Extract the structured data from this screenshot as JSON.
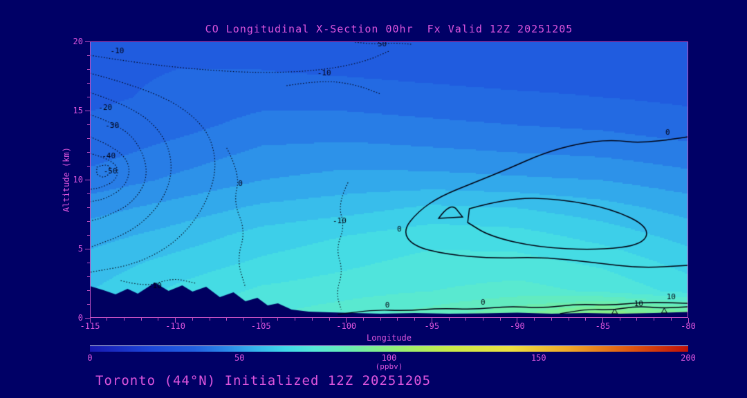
{
  "title": "CO Longitudinal X-Section 00hr  Fx Valid 12Z 20251205",
  "footer": "Toronto (44°N) Initialized 12Z 20251205",
  "colors": {
    "background": "#000066",
    "axis": "#c04fc0",
    "label_text": "#dd55dd",
    "contour_line": "#000010",
    "terrain": "#000060"
  },
  "chart_data": {
    "type": "heatmap",
    "title": "CO Longitudinal X-Section 00hr  Fx Valid 12Z 20251205",
    "xlabel": "Longitude",
    "ylabel": "Altitude (km)",
    "x_ticks": [
      -115,
      -110,
      -105,
      -100,
      -95,
      -90,
      -85,
      -80
    ],
    "y_ticks": [
      0,
      5,
      10,
      15,
      20
    ],
    "x_range": [
      -115,
      -80
    ],
    "y_range": [
      0,
      20
    ],
    "band_interval_ppbv": 5,
    "x": [
      -115,
      -110,
      -105,
      -100,
      -95,
      -90,
      -85,
      -80
    ],
    "y": [
      0,
      2,
      4,
      6,
      8,
      10,
      12,
      14,
      16,
      18,
      20
    ],
    "values_ppbv": [
      [
        63,
        70,
        75,
        79,
        84,
        92,
        104,
        98
      ],
      [
        60,
        66,
        71,
        73,
        75,
        77,
        74,
        68
      ],
      [
        57,
        62,
        66,
        69,
        72,
        72,
        69,
        63
      ],
      [
        53,
        57,
        62,
        65,
        68,
        67,
        63,
        58
      ],
      [
        48,
        52,
        56,
        58,
        61,
        60,
        57,
        53
      ],
      [
        42,
        46,
        50,
        52,
        52,
        51,
        50,
        47
      ],
      [
        38,
        42,
        46,
        47,
        46,
        45,
        44,
        42
      ],
      [
        36,
        38,
        42,
        42,
        41,
        40,
        39,
        37
      ],
      [
        34,
        36,
        38,
        38,
        37,
        36,
        35,
        34
      ],
      [
        34,
        35,
        35,
        34,
        33,
        32,
        32,
        31
      ],
      [
        33,
        33,
        33,
        32,
        31,
        30,
        30,
        30
      ]
    ],
    "colorbar": {
      "label": "(ppbv)",
      "ticks": [
        0,
        50,
        100,
        150,
        200
      ],
      "range": [
        0,
        200
      ],
      "stops": [
        [
          0,
          "#1818b0"
        ],
        [
          20,
          "#1c46d8"
        ],
        [
          35,
          "#2160e0"
        ],
        [
          45,
          "#2a86e8"
        ],
        [
          55,
          "#35b4ec"
        ],
        [
          65,
          "#3fd8e8"
        ],
        [
          75,
          "#55e8d8"
        ],
        [
          85,
          "#66ecb8"
        ],
        [
          95,
          "#7fee90"
        ],
        [
          105,
          "#9cee6e"
        ],
        [
          120,
          "#c8ea48"
        ],
        [
          140,
          "#ece040"
        ],
        [
          160,
          "#f0a828"
        ],
        [
          180,
          "#e05a10"
        ],
        [
          200,
          "#c01008"
        ]
      ]
    },
    "terrain_profile": [
      [
        -115,
        2.3
      ],
      [
        -114.2,
        2.0
      ],
      [
        -113.5,
        1.7
      ],
      [
        -112.8,
        2.1
      ],
      [
        -112.2,
        1.75
      ],
      [
        -111.2,
        2.55
      ],
      [
        -110.4,
        1.95
      ],
      [
        -109.6,
        2.35
      ],
      [
        -109.0,
        1.9
      ],
      [
        -108.2,
        2.25
      ],
      [
        -107.4,
        1.5
      ],
      [
        -106.6,
        1.85
      ],
      [
        -105.9,
        1.2
      ],
      [
        -105.2,
        1.45
      ],
      [
        -104.6,
        0.9
      ],
      [
        -104.0,
        1.05
      ],
      [
        -103.2,
        0.6
      ],
      [
        -102.2,
        0.45
      ],
      [
        -101.0,
        0.4
      ],
      [
        -99.5,
        0.35
      ],
      [
        -98,
        0.3
      ],
      [
        -96,
        0.35
      ],
      [
        -94,
        0.3
      ],
      [
        -92,
        0.32
      ],
      [
        -90,
        0.38
      ],
      [
        -88,
        0.3
      ],
      [
        -86,
        0.35
      ],
      [
        -84,
        0.3
      ],
      [
        -82,
        0.35
      ],
      [
        -80,
        0.42
      ]
    ],
    "contours": [
      {
        "style": "dotted",
        "closed": false,
        "labels": [
          {
            "text": "-10",
            "pos": [
              -113.4,
              19.3
            ]
          }
        ],
        "points": [
          [
            -115,
            19.0
          ],
          [
            -112.5,
            18.5
          ],
          [
            -109,
            18.0
          ],
          [
            -105,
            17.7
          ],
          [
            -101.5,
            17.9
          ],
          [
            -99,
            18.5
          ],
          [
            -97.5,
            19.3
          ]
        ]
      },
      {
        "style": "dotted",
        "closed": false,
        "labels": [
          {
            "text": "-10",
            "pos": [
              -101.3,
              17.7
            ]
          }
        ],
        "points": [
          [
            -103.5,
            16.8
          ],
          [
            -101.5,
            17.2
          ],
          [
            -99.5,
            16.9
          ],
          [
            -98,
            16.2
          ]
        ]
      },
      {
        "style": "dotted",
        "closed": false,
        "labels": [
          {
            "text": "-20",
            "pos": [
              -114.1,
              15.2
            ]
          }
        ],
        "points": [
          [
            -115,
            16.3
          ],
          [
            -112.5,
            15.3
          ],
          [
            -110.6,
            13.2
          ],
          [
            -110.1,
            10.6
          ],
          [
            -110.9,
            8.1
          ],
          [
            -112.6,
            6.2
          ],
          [
            -115,
            5.1
          ]
        ]
      },
      {
        "style": "dotted",
        "closed": false,
        "labels": [
          {
            "text": "-30",
            "pos": [
              -113.7,
              13.9
            ]
          }
        ],
        "points": [
          [
            -115,
            14.7
          ],
          [
            -113.1,
            13.9
          ],
          [
            -111.9,
            12.1
          ],
          [
            -111.6,
            10.1
          ],
          [
            -112.5,
            8.3
          ],
          [
            -114.1,
            7.3
          ],
          [
            -115,
            7.0
          ]
        ]
      },
      {
        "style": "dotted",
        "closed": false,
        "labels": [
          {
            "text": "-40",
            "pos": [
              -113.9,
              11.7
            ]
          }
        ],
        "points": [
          [
            -115,
            13.1
          ],
          [
            -113.6,
            12.4
          ],
          [
            -112.6,
            11.1
          ],
          [
            -112.9,
            9.5
          ],
          [
            -114.1,
            8.6
          ],
          [
            -115,
            8.4
          ]
        ]
      },
      {
        "style": "dotted",
        "closed": false,
        "labels": [
          {
            "text": "-50",
            "pos": [
              -113.8,
              10.6
            ]
          }
        ],
        "points": [
          [
            -115,
            11.9
          ],
          [
            -114.1,
            11.6
          ],
          [
            -113.3,
            10.9
          ],
          [
            -113.5,
            9.9
          ],
          [
            -114.4,
            9.4
          ],
          [
            -115,
            9.3
          ]
        ]
      },
      {
        "style": "dotted",
        "closed": true,
        "labels": [],
        "points": [
          [
            -114.6,
            10.9
          ],
          [
            -114.0,
            11.2
          ],
          [
            -113.7,
            10.6
          ],
          [
            -114.2,
            10.1
          ],
          [
            -114.6,
            10.4
          ]
        ]
      },
      {
        "style": "dotted",
        "closed": false,
        "labels": [],
        "points": [
          [
            -115,
            17.7
          ],
          [
            -111.3,
            16.5
          ],
          [
            -108.3,
            14.1
          ],
          [
            -107.5,
            11.2
          ],
          [
            -108.2,
            8.2
          ],
          [
            -109.8,
            5.6
          ],
          [
            -112.2,
            3.9
          ],
          [
            -115,
            3.3
          ]
        ]
      },
      {
        "style": "dotted",
        "closed": false,
        "labels": [
          {
            "text": "-10",
            "pos": [
              -111.2,
              2.3
            ]
          }
        ],
        "points": [
          [
            -113.2,
            2.7
          ],
          [
            -111.7,
            2.2
          ],
          [
            -110.2,
            2.9
          ],
          [
            -108.8,
            2.5
          ]
        ]
      },
      {
        "style": "dotted",
        "closed": false,
        "labels": [
          {
            "text": "-10",
            "pos": [
              -100.4,
              7.0
            ]
          }
        ],
        "points": [
          [
            -99.9,
            9.8
          ],
          [
            -100.5,
            8.3
          ],
          [
            -100.1,
            6.6
          ],
          [
            -100.6,
            5.0
          ],
          [
            -100.2,
            3.4
          ],
          [
            -100.6,
            1.8
          ],
          [
            -100.3,
            0.6
          ]
        ]
      },
      {
        "style": "dotted",
        "closed": false,
        "labels": [
          {
            "text": "0",
            "pos": [
              -106.2,
              9.7
            ]
          }
        ],
        "points": [
          [
            -107.0,
            12.3
          ],
          [
            -106.2,
            10.4
          ],
          [
            -106.6,
            8.4
          ],
          [
            -105.9,
            6.3
          ],
          [
            -106.4,
            4.2
          ],
          [
            -105.9,
            2.2
          ]
        ]
      },
      {
        "style": "dotted",
        "closed": false,
        "labels": [
          {
            "text": "50",
            "pos": [
              -97.9,
              19.8
            ]
          }
        ],
        "points": [
          [
            -99.5,
            19.95
          ],
          [
            -98.5,
            19.8
          ],
          [
            -97.2,
            19.9
          ],
          [
            -96.2,
            19.8
          ]
        ]
      },
      {
        "style": "solid",
        "closed": false,
        "labels": [
          {
            "text": "0",
            "pos": [
              -96.9,
              6.4
            ]
          },
          {
            "text": "0",
            "pos": [
              -81.2,
              13.4
            ]
          }
        ],
        "points": [
          [
            -80,
            13.1
          ],
          [
            -82.5,
            12.6
          ],
          [
            -84.5,
            12.9
          ],
          [
            -86.5,
            12.6
          ],
          [
            -88.5,
            11.9
          ],
          [
            -90.5,
            10.8
          ],
          [
            -92.5,
            9.8
          ],
          [
            -94.5,
            8.8
          ],
          [
            -95.8,
            7.7
          ],
          [
            -96.7,
            6.3
          ],
          [
            -96.1,
            5.2
          ],
          [
            -94.2,
            4.6
          ],
          [
            -91.5,
            4.3
          ],
          [
            -88.5,
            4.4
          ],
          [
            -85.5,
            4.0
          ],
          [
            -82.8,
            3.6
          ],
          [
            -80,
            3.8
          ]
        ]
      },
      {
        "style": "solid",
        "closed": true,
        "labels": [],
        "points": [
          [
            -92.8,
            7.9
          ],
          [
            -90.5,
            8.7
          ],
          [
            -87.5,
            8.6
          ],
          [
            -84.5,
            7.9
          ],
          [
            -82.3,
            6.6
          ],
          [
            -82.6,
            5.3
          ],
          [
            -85.3,
            4.9
          ],
          [
            -88.8,
            5.1
          ],
          [
            -91.6,
            5.9
          ],
          [
            -92.9,
            6.9
          ]
        ]
      },
      {
        "style": "solid",
        "closed": true,
        "labels": [],
        "points": [
          [
            -94.6,
            7.2
          ],
          [
            -93.9,
            8.4
          ],
          [
            -93.2,
            7.3
          ]
        ]
      },
      {
        "style": "solid",
        "closed": false,
        "labels": [
          {
            "text": "0",
            "pos": [
              -97.6,
              0.9
            ]
          },
          {
            "text": "0",
            "pos": [
              -92.0,
              1.1
            ]
          }
        ],
        "points": [
          [
            -100.5,
            0.25
          ],
          [
            -98.5,
            0.6
          ],
          [
            -96.5,
            0.5
          ],
          [
            -94.5,
            0.7
          ],
          [
            -92.5,
            0.6
          ],
          [
            -90.5,
            0.85
          ],
          [
            -88.5,
            0.7
          ],
          [
            -86.5,
            1.0
          ],
          [
            -84.5,
            0.9
          ],
          [
            -82.5,
            1.15
          ],
          [
            -80,
            1.05
          ]
        ]
      },
      {
        "style": "solid",
        "closed": false,
        "labels": [
          {
            "text": "10",
            "pos": [
              -82.9,
              1.0
            ]
          },
          {
            "text": "10",
            "pos": [
              -81.0,
              1.5
            ]
          }
        ],
        "points": [
          [
            -87.5,
            0.3
          ],
          [
            -86,
            0.65
          ],
          [
            -84.5,
            0.55
          ],
          [
            -83,
            0.85
          ],
          [
            -81.5,
            0.7
          ],
          [
            -80,
            0.8
          ]
        ]
      }
    ],
    "markers": [
      {
        "symbol": "triangle",
        "lon": -84.3,
        "alt": 0.45
      },
      {
        "symbol": "triangle",
        "lon": -81.4,
        "alt": 0.5
      }
    ]
  }
}
